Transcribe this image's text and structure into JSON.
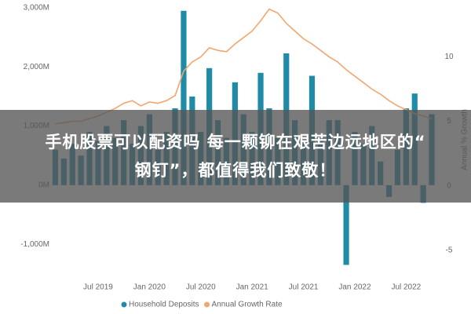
{
  "chart_data": {
    "type": "bar-line",
    "categories": [
      null,
      null,
      null,
      null,
      null,
      "Jul 2019",
      null,
      null,
      null,
      null,
      null,
      "Jan 2020",
      null,
      null,
      null,
      null,
      null,
      "Jul 2020",
      null,
      null,
      null,
      null,
      null,
      "Jan 2021",
      null,
      null,
      null,
      null,
      null,
      "Jul 2021",
      null,
      null,
      null,
      null,
      null,
      "Jan 2022",
      null,
      null,
      null,
      null,
      null,
      "Jul 2022",
      null,
      null,
      null
    ],
    "series": [
      {
        "name": "Household Deposits",
        "color": "#1f8ba6",
        "type": "bar",
        "values": [
          600,
          450,
          700,
          500,
          900,
          750,
          1000,
          800,
          1100,
          700,
          1000,
          1200,
          600,
          900,
          1300,
          2950,
          1500,
          900,
          1980,
          1100,
          800,
          1740,
          1200,
          900,
          1900,
          1300,
          800,
          2230,
          1100,
          700,
          1850,
          800,
          1100,
          1100,
          -1350,
          900,
          700,
          1000,
          400,
          -200,
          600,
          1300,
          1550,
          -300,
          1200
        ]
      },
      {
        "name": "Annual Growth Rate",
        "color": "#f2a66e",
        "type": "line",
        "axis": "y2",
        "values": [
          4.8,
          4.9,
          5.0,
          5.0,
          5.2,
          5.4,
          5.7,
          6.0,
          6.4,
          6.6,
          6.2,
          6.5,
          6.4,
          6.6,
          7.0,
          8.9,
          9.6,
          10.0,
          10.7,
          10.5,
          10.4,
          11.0,
          11.5,
          12.0,
          12.8,
          13.7,
          13.4,
          12.6,
          12.0,
          11.4,
          11.0,
          10.5,
          10.0,
          9.6,
          9.0,
          8.5,
          8.0,
          7.5,
          7.1,
          6.6,
          6.2,
          5.9,
          5.6,
          5.4,
          5.2
        ]
      }
    ],
    "ylim": [
      -1450,
      3000
    ],
    "yticks": [
      {
        "value": -1000,
        "label": "-1,000M"
      },
      {
        "value": 0,
        "label": "0M"
      },
      {
        "value": 1000,
        "label": "1,000M"
      },
      {
        "value": 2000,
        "label": "2,000M"
      },
      {
        "value": 3000,
        "label": "3,000M"
      }
    ],
    "y2lim": [
      -6.6,
      13.8
    ],
    "y2ticks": [
      -5,
      0,
      5,
      10
    ],
    "y2label": "Annual % Growth",
    "legend": "bottom",
    "overlay_caption": [
      "手机股票可以配资吗 每一颗铆在艰苦边远地区的“",
      "钢钉”，都值得我们致敬！"
    ]
  }
}
